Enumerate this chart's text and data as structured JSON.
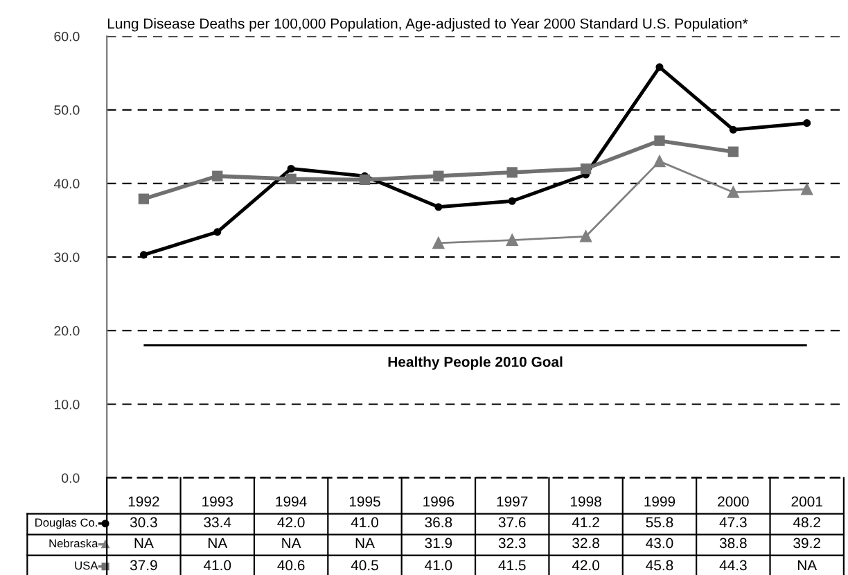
{
  "chart_data": {
    "type": "line",
    "title": "Lung Disease Deaths per 100,000 Population, Age-adjusted to Year 2000 Standard U.S. Population*",
    "categories": [
      "1992",
      "1993",
      "1994",
      "1995",
      "1996",
      "1997",
      "1998",
      "1999",
      "2000",
      "2001"
    ],
    "series": [
      {
        "name": "Douglas Co.",
        "color": "#000000",
        "marker": "circle",
        "values": [
          30.3,
          33.4,
          42.0,
          41.0,
          36.8,
          37.6,
          41.2,
          55.8,
          47.3,
          48.2
        ],
        "value_labels": [
          "30.3",
          "33.4",
          "42.0",
          "41.0",
          "36.8",
          "37.6",
          "41.2",
          "55.8",
          "47.3",
          "48.2"
        ]
      },
      {
        "name": "Nebraska",
        "color": "#808080",
        "marker": "triangle",
        "values": [
          null,
          null,
          null,
          null,
          31.9,
          32.3,
          32.8,
          43.0,
          38.8,
          39.2
        ],
        "value_labels": [
          "NA",
          "NA",
          "NA",
          "NA",
          "31.9",
          "32.3",
          "32.8",
          "43.0",
          "38.8",
          "39.2"
        ]
      },
      {
        "name": "USA",
        "color": "#707070",
        "marker": "square",
        "values": [
          37.9,
          41.0,
          40.6,
          40.5,
          41.0,
          41.5,
          42.0,
          45.8,
          44.3,
          null
        ],
        "value_labels": [
          "37.9",
          "41.0",
          "40.6",
          "40.5",
          "41.0",
          "41.5",
          "42.0",
          "45.8",
          "44.3",
          "NA"
        ]
      }
    ],
    "ylim": [
      0,
      60
    ],
    "yticks": [
      {
        "value": 0,
        "label": "0.0"
      },
      {
        "value": 10,
        "label": "10.0"
      },
      {
        "value": 20,
        "label": "20.0"
      },
      {
        "value": 30,
        "label": "30.0"
      },
      {
        "value": 40,
        "label": "40.0"
      },
      {
        "value": 50,
        "label": "50.0"
      },
      {
        "value": 60,
        "label": "60.0"
      }
    ],
    "grid": "y",
    "line_style": "solid",
    "legend": "left",
    "ref_lines": [
      {
        "axis": "y",
        "value": 18.0,
        "label": "Healthy People 2010 Goal",
        "color": "#000000"
      }
    ]
  }
}
